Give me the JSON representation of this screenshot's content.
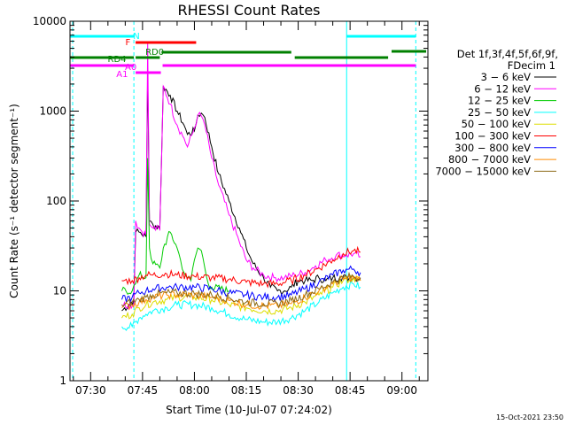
{
  "chart_data": {
    "type": "line",
    "title": "RHESSI Count Rates",
    "xlabel": "Start Time (10-Jul-07 07:24:02)",
    "ylabel": "Count Rate (s⁻¹ detector segment⁻¹)",
    "x_ticks": [
      "07:30",
      "07:45",
      "08:00",
      "08:15",
      "08:30",
      "08:45",
      "09:00"
    ],
    "x_tick_minutes": [
      30,
      45,
      60,
      75,
      90,
      105,
      120
    ],
    "y_ticks": [
      "1",
      "10",
      "100",
      "1000",
      "10000"
    ],
    "y_scale": "log",
    "xlim": [
      24.03,
      127.5
    ],
    "ylim": [
      1,
      10000
    ],
    "legend_header": [
      "Det 1f,3f,4f,5f,6f,9f,",
      "FDecim 1"
    ],
    "legend_position": "right",
    "timestamp": "15-Oct-2021 23:50",
    "series": [
      {
        "name": "3 − 6 keV",
        "color": "#000000",
        "points": [
          [
            39,
            6
          ],
          [
            41,
            7
          ],
          [
            42.5,
            8
          ],
          [
            43,
            45
          ],
          [
            44,
            45
          ],
          [
            46,
            40
          ],
          [
            46.5,
            3000
          ],
          [
            47,
            60
          ],
          [
            48,
            55
          ],
          [
            50,
            50
          ],
          [
            51,
            1900
          ],
          [
            53,
            1500
          ],
          [
            55,
            1000
          ],
          [
            57,
            700
          ],
          [
            58,
            550
          ],
          [
            60,
            600
          ],
          [
            61,
            900
          ],
          [
            62,
            950
          ],
          [
            63,
            850
          ],
          [
            65,
            400
          ],
          [
            67,
            200
          ],
          [
            70,
            100
          ],
          [
            73,
            50
          ],
          [
            75,
            30
          ],
          [
            77,
            20
          ],
          [
            80,
            14
          ],
          [
            82,
            11
          ],
          [
            84,
            10
          ],
          [
            86,
            10
          ],
          [
            88,
            11
          ],
          [
            90,
            13
          ],
          [
            92,
            13
          ],
          [
            94,
            13
          ],
          [
            96,
            14
          ],
          [
            98,
            13
          ],
          [
            100,
            14
          ],
          [
            102,
            14
          ],
          [
            104,
            14
          ],
          [
            106,
            14
          ],
          [
            108,
            14
          ]
        ]
      },
      {
        "name": "6 − 12 keV",
        "color": "#ff00ff",
        "points": [
          [
            39,
            7
          ],
          [
            42.5,
            7
          ],
          [
            43,
            60
          ],
          [
            44,
            50
          ],
          [
            46,
            42
          ],
          [
            46.5,
            5800
          ],
          [
            47,
            55
          ],
          [
            48,
            50
          ],
          [
            50,
            48
          ],
          [
            51,
            1900
          ],
          [
            53,
            1200
          ],
          [
            55,
            700
          ],
          [
            57,
            500
          ],
          [
            58,
            400
          ],
          [
            60,
            650
          ],
          [
            61,
            900
          ],
          [
            62,
            880
          ],
          [
            63,
            700
          ],
          [
            65,
            300
          ],
          [
            67,
            150
          ],
          [
            70,
            70
          ],
          [
            73,
            35
          ],
          [
            75,
            22
          ],
          [
            77,
            18
          ],
          [
            80,
            15
          ],
          [
            83,
            14
          ],
          [
            86,
            14
          ],
          [
            89,
            15
          ],
          [
            92,
            16
          ],
          [
            95,
            19
          ],
          [
            98,
            22
          ],
          [
            101,
            25
          ],
          [
            104,
            25
          ],
          [
            106,
            26
          ],
          [
            108,
            24
          ]
        ]
      },
      {
        "name": "12 − 25 keV",
        "color": "#00cc00",
        "points": [
          [
            39,
            10
          ],
          [
            42,
            10
          ],
          [
            43,
            12
          ],
          [
            44,
            15
          ],
          [
            46,
            14
          ],
          [
            46.5,
            300
          ],
          [
            47,
            30
          ],
          [
            48,
            20
          ],
          [
            50,
            18
          ],
          [
            51,
            30
          ],
          [
            53,
            45
          ],
          [
            55,
            30
          ],
          [
            56,
            22
          ],
          [
            57,
            16
          ],
          [
            58,
            14
          ],
          [
            59,
            13
          ],
          [
            60,
            22
          ],
          [
            61,
            30
          ],
          [
            62,
            28
          ],
          [
            63,
            18
          ],
          [
            64,
            12
          ],
          [
            65,
            11
          ],
          [
            70,
            10
          ]
        ]
      },
      {
        "name": "25 − 50 keV",
        "color": "#00ffff",
        "points": [
          [
            39,
            4
          ],
          [
            42,
            4
          ],
          [
            44,
            5
          ],
          [
            46,
            5.5
          ],
          [
            48,
            6
          ],
          [
            52,
            6.5
          ],
          [
            55,
            7
          ],
          [
            60,
            7
          ],
          [
            65,
            6.5
          ],
          [
            70,
            5.5
          ],
          [
            75,
            4.8
          ],
          [
            80,
            4.5
          ],
          [
            84,
            4.5
          ],
          [
            88,
            5
          ],
          [
            92,
            6
          ],
          [
            96,
            7.5
          ],
          [
            100,
            9.5
          ],
          [
            103,
            11
          ],
          [
            106,
            12
          ],
          [
            108,
            11
          ]
        ]
      },
      {
        "name": "50 − 100 keV",
        "color": "#dddd00",
        "points": [
          [
            39,
            5
          ],
          [
            42,
            5.5
          ],
          [
            44,
            6.5
          ],
          [
            46,
            7
          ],
          [
            48,
            7.5
          ],
          [
            52,
            8
          ],
          [
            55,
            8.5
          ],
          [
            60,
            8.5
          ],
          [
            65,
            8
          ],
          [
            70,
            7
          ],
          [
            75,
            6.5
          ],
          [
            80,
            6
          ],
          [
            84,
            6
          ],
          [
            88,
            6.5
          ],
          [
            92,
            7.5
          ],
          [
            96,
            9
          ],
          [
            100,
            11
          ],
          [
            103,
            13
          ],
          [
            106,
            14
          ],
          [
            108,
            13
          ]
        ]
      },
      {
        "name": "100 − 300 keV",
        "color": "#ff0000",
        "points": [
          [
            39,
            13
          ],
          [
            42,
            13
          ],
          [
            44,
            14
          ],
          [
            46,
            15
          ],
          [
            48,
            15
          ],
          [
            52,
            15.5
          ],
          [
            55,
            15
          ],
          [
            60,
            14.5
          ],
          [
            65,
            14
          ],
          [
            70,
            13.5
          ],
          [
            75,
            12.5
          ],
          [
            80,
            12
          ],
          [
            84,
            12
          ],
          [
            88,
            13
          ],
          [
            92,
            15
          ],
          [
            96,
            18
          ],
          [
            100,
            22
          ],
          [
            103,
            26
          ],
          [
            106,
            28
          ],
          [
            108,
            27
          ]
        ]
      },
      {
        "name": "300 − 800 keV",
        "color": "#0000ff",
        "points": [
          [
            39,
            8
          ],
          [
            42,
            8.5
          ],
          [
            44,
            9.5
          ],
          [
            46,
            10
          ],
          [
            48,
            10.5
          ],
          [
            52,
            11
          ],
          [
            55,
            11
          ],
          [
            60,
            11
          ],
          [
            65,
            10.5
          ],
          [
            70,
            9.5
          ],
          [
            75,
            9
          ],
          [
            80,
            8.5
          ],
          [
            84,
            8.5
          ],
          [
            88,
            9
          ],
          [
            92,
            10.5
          ],
          [
            96,
            12.5
          ],
          [
            100,
            15
          ],
          [
            103,
            17
          ],
          [
            106,
            17.5
          ],
          [
            108,
            16
          ]
        ]
      },
      {
        "name": "800 − 7000 keV",
        "color": "#ff8c00",
        "points": [
          [
            39,
            6.5
          ],
          [
            42,
            7
          ],
          [
            44,
            7.5
          ],
          [
            46,
            8
          ],
          [
            48,
            8.5
          ],
          [
            52,
            9
          ],
          [
            55,
            9
          ],
          [
            60,
            9
          ],
          [
            65,
            8.5
          ],
          [
            70,
            7.8
          ],
          [
            75,
            7
          ],
          [
            80,
            6.8
          ],
          [
            84,
            6.8
          ],
          [
            88,
            7.2
          ],
          [
            92,
            8.5
          ],
          [
            96,
            10
          ],
          [
            100,
            12
          ],
          [
            103,
            13.5
          ],
          [
            106,
            14
          ],
          [
            108,
            13
          ]
        ]
      },
      {
        "name": "7000 − 15000 keV",
        "color": "#8b6914",
        "points": [
          [
            39,
            7
          ],
          [
            42,
            7.5
          ],
          [
            44,
            8
          ],
          [
            46,
            8.5
          ],
          [
            48,
            9
          ],
          [
            52,
            9.5
          ],
          [
            55,
            9.5
          ],
          [
            60,
            9.3
          ],
          [
            65,
            9
          ],
          [
            70,
            8.3
          ],
          [
            75,
            7.5
          ],
          [
            80,
            7.2
          ],
          [
            84,
            7.2
          ],
          [
            88,
            7.8
          ],
          [
            92,
            9
          ],
          [
            96,
            10.5
          ],
          [
            100,
            12.5
          ],
          [
            103,
            14
          ],
          [
            106,
            14.5
          ],
          [
            108,
            13.5
          ]
        ]
      }
    ],
    "vertical_lines": [
      {
        "x": 24.8,
        "color": "#00ffff",
        "style": "dashed"
      },
      {
        "x": 42.5,
        "color": "#00ffff",
        "style": "dashed"
      },
      {
        "x": 104,
        "color": "#00ffff",
        "style": "solid"
      },
      {
        "x": 124,
        "color": "#00ffff",
        "style": "dashed"
      }
    ],
    "state_bars": [
      {
        "label": "N",
        "color": "#00ffff",
        "segments": [
          [
            24.03,
            42.5
          ],
          [
            104,
            124
          ]
        ]
      },
      {
        "label": "F",
        "color": "#ff0000",
        "segments": [
          [
            43,
            60.5
          ]
        ]
      },
      {
        "label": "RD0",
        "color": "#008000",
        "segments": [
          [
            50.5,
            88
          ]
        ]
      },
      {
        "label": "RD4",
        "color": "#008000",
        "segments": [
          [
            24.03,
            42.5
          ],
          [
            43,
            50
          ],
          [
            89,
            116
          ]
        ]
      },
      {
        "label": "RD4",
        "color": "#008000",
        "segments": [
          [
            117,
            127
          ]
        ]
      },
      {
        "label": "A0",
        "color": "#ff00ff",
        "segments": [
          [
            24.03,
            42.5
          ],
          [
            50.8,
            124
          ]
        ]
      },
      {
        "label": "A1",
        "color": "#ff00ff",
        "segments": [
          [
            43,
            50.3
          ]
        ]
      }
    ]
  },
  "state_labels": {
    "N": "N",
    "F": "F",
    "RD0": "RD0",
    "RD4": "RD4",
    "A0": "A0",
    "A1": "A1"
  }
}
